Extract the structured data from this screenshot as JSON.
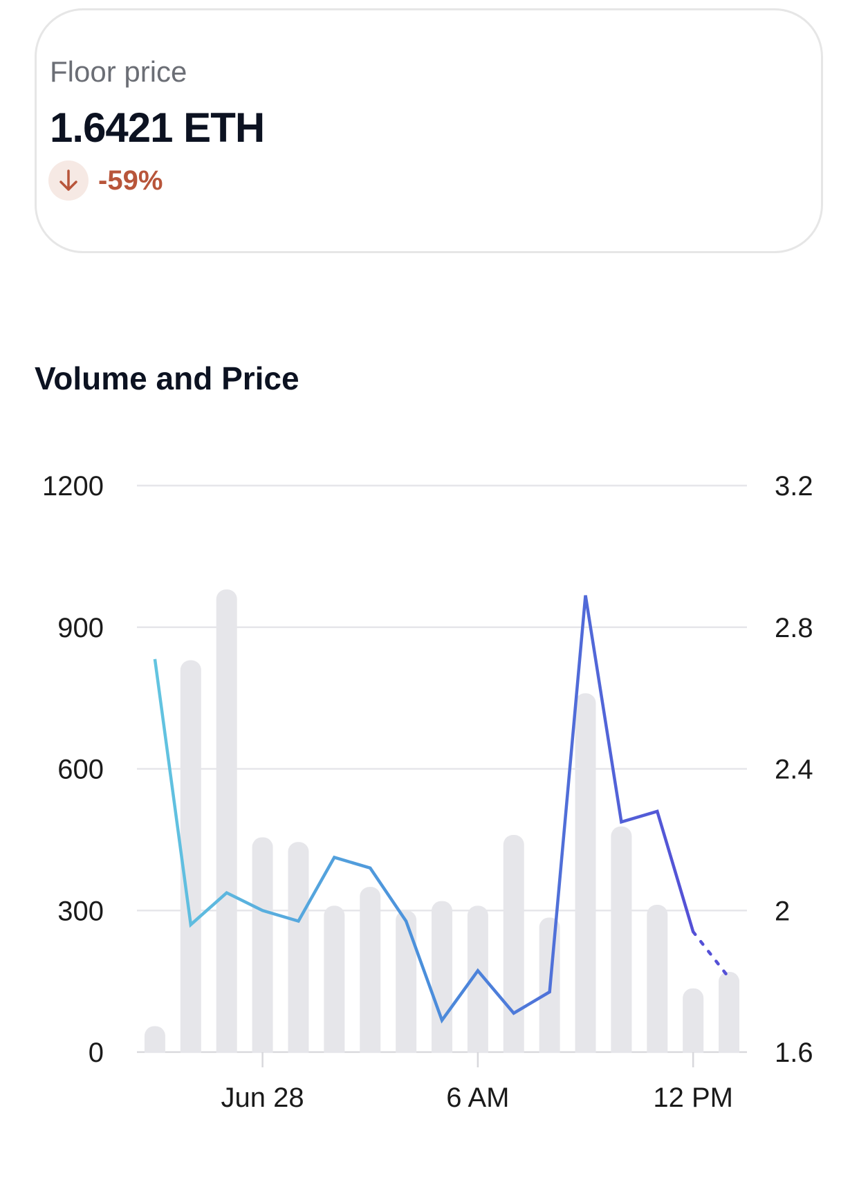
{
  "card": {
    "label": "Floor price",
    "value": "1.6421 ETH",
    "change": "-59%",
    "change_icon": "arrow-down-icon",
    "change_color": "#b8553a",
    "change_bg": "#f6e9e4"
  },
  "section_title": "Volume and Price",
  "chart_data": {
    "type": "bar",
    "title": "Volume and Price",
    "x_ticks": [
      {
        "label": "Jun 28",
        "index": 3.5
      },
      {
        "label": "6 AM",
        "index": 9.5
      },
      {
        "label": "12 PM",
        "index": 15.5
      }
    ],
    "y_left": {
      "ticks": [
        "1200",
        "900",
        "600",
        "300",
        "0"
      ],
      "range": [
        0,
        1200
      ]
    },
    "y_right": {
      "ticks": [
        "3.2",
        "2.8",
        "2.4",
        "2",
        "1.6"
      ],
      "range": [
        1.6,
        3.2
      ]
    },
    "grid": true,
    "series": [
      {
        "type": "bar",
        "axis": "left",
        "color": "#e6e6ea",
        "values": [
          55,
          830,
          980,
          455,
          445,
          310,
          350,
          300,
          320,
          310,
          460,
          285,
          760,
          478,
          312,
          135,
          170
        ]
      },
      {
        "type": "line",
        "axis": "right",
        "colors": [
          "#62c4e0",
          "#4b8fdb",
          "#5450d6"
        ],
        "values": [
          2.71,
          1.96,
          2.05,
          2.0,
          1.97,
          2.15,
          2.12,
          1.97,
          1.69,
          1.83,
          1.71,
          1.77,
          2.89,
          2.25,
          2.28,
          1.94
        ],
        "projected": [
          1.94,
          1.81
        ]
      }
    ]
  }
}
